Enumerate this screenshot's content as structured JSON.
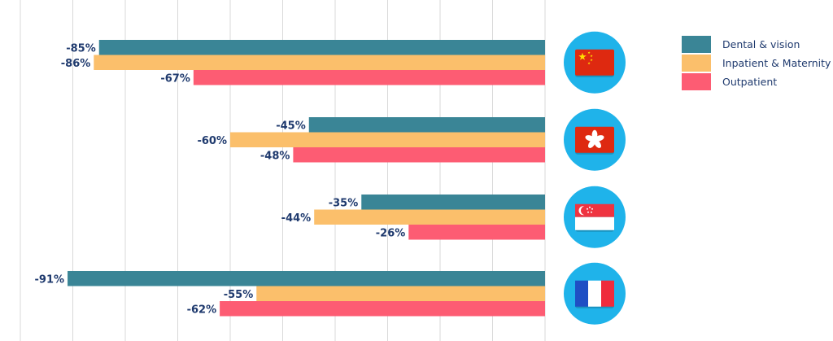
{
  "chart_data": {
    "type": "bar",
    "orientation": "horizontal",
    "categories": [
      "China",
      "Hong Kong",
      "Singapore",
      "France"
    ],
    "category_icons": [
      "china-flag-icon",
      "hong-kong-flag-icon",
      "singapore-flag-icon",
      "france-flag-icon"
    ],
    "series": [
      {
        "name": "Dental & vision",
        "values": [
          -85,
          -45,
          -35,
          -91
        ],
        "labels": [
          "-85%",
          "-45%",
          "-35%",
          "-91%"
        ],
        "color": "#3a8596"
      },
      {
        "name": "Inpatient & Maternity",
        "values": [
          -86,
          -60,
          -44,
          -55
        ],
        "labels": [
          "-86%",
          "-60%",
          "-44%",
          "-55%"
        ],
        "color": "#fbbf6b"
      },
      {
        "name": "Outpatient",
        "values": [
          -67,
          -48,
          -26,
          -62
        ],
        "labels": [
          "-67%",
          "-48%",
          "-26%",
          "-62%"
        ],
        "color": "#fd5c73"
      }
    ],
    "xlim": [
      -100,
      0
    ],
    "grid": true,
    "legend_position": "top-right",
    "accent_colors": {
      "circle": "#1fb3ea",
      "gridline": "#d9d9d9"
    }
  }
}
